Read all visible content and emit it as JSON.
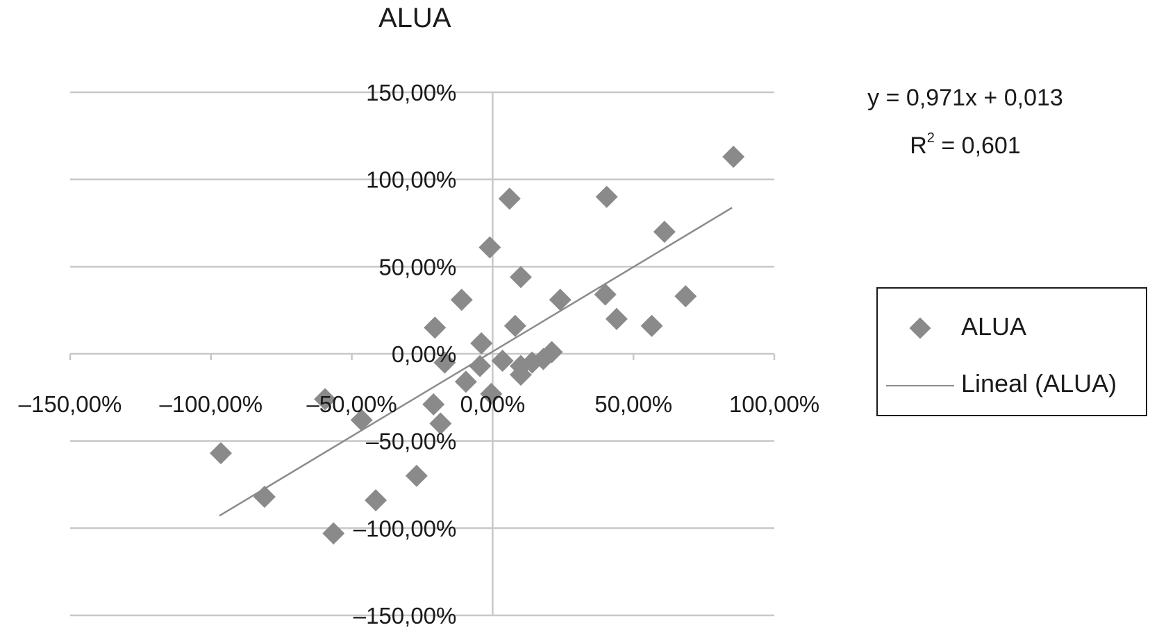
{
  "chart_data": {
    "type": "scatter",
    "title": "ALUA",
    "xlabel": "",
    "ylabel": "",
    "xlim": [
      -1.5,
      1.0
    ],
    "ylim": [
      -1.5,
      1.5
    ],
    "x_ticks": [
      "–150,00%",
      "–100,00%",
      "–50,00%",
      "0,00%",
      "50,00%",
      "100,00%"
    ],
    "y_ticks": [
      "150,00%",
      "100,00%",
      "50,00%",
      "0,00%",
      "–50,00%",
      "–100,00%",
      "–150,00%"
    ],
    "x_tick_values": [
      -1.5,
      -1.0,
      -0.5,
      0.0,
      0.5,
      1.0
    ],
    "y_tick_values": [
      1.5,
      1.0,
      0.5,
      0.0,
      -0.5,
      -1.0,
      -1.5
    ],
    "grid": "horizontal",
    "legend_position": "right",
    "series": [
      {
        "name": "ALUA",
        "points": [
          [
            0.855,
            1.13
          ],
          [
            0.06,
            0.89
          ],
          [
            0.405,
            0.9
          ],
          [
            0.61,
            0.7
          ],
          [
            -0.01,
            0.61
          ],
          [
            0.1,
            0.44
          ],
          [
            -0.11,
            0.31
          ],
          [
            0.4,
            0.34
          ],
          [
            0.24,
            0.31
          ],
          [
            0.685,
            0.33
          ],
          [
            0.44,
            0.2
          ],
          [
            0.08,
            0.16
          ],
          [
            -0.205,
            0.15
          ],
          [
            0.565,
            0.16
          ],
          [
            -0.04,
            0.06
          ],
          [
            0.21,
            0.01
          ],
          [
            0.18,
            -0.03
          ],
          [
            0.14,
            -0.05
          ],
          [
            0.035,
            -0.04
          ],
          [
            -0.17,
            -0.05
          ],
          [
            0.1,
            -0.07
          ],
          [
            -0.045,
            -0.07
          ],
          [
            0.1,
            -0.12
          ],
          [
            -0.095,
            -0.16
          ],
          [
            -0.005,
            -0.23
          ],
          [
            -0.595,
            -0.26
          ],
          [
            -0.21,
            -0.29
          ],
          [
            -0.465,
            -0.38
          ],
          [
            -0.185,
            -0.4
          ],
          [
            -0.965,
            -0.57
          ],
          [
            -0.27,
            -0.7
          ],
          [
            -0.81,
            -0.82
          ],
          [
            -0.415,
            -0.84
          ],
          [
            -0.565,
            -1.03
          ]
        ]
      },
      {
        "name": "Lineal (ALUA)",
        "type": "line",
        "points": [
          [
            -0.97,
            -0.929
          ],
          [
            0.85,
            0.838
          ]
        ]
      }
    ],
    "annotations": {
      "equation": "y = 0,971x + 0,013",
      "r2_prefix": "R",
      "r2_exponent": "2",
      "r2_value": " = 0,601"
    }
  },
  "legend": {
    "points_label": "ALUA",
    "line_label": "Lineal (ALUA)"
  },
  "colors": {
    "marker": "#8a8a8a",
    "trendline": "#8c8c8c",
    "grid": "#c8c8c8",
    "text": "#1a1a1a"
  }
}
